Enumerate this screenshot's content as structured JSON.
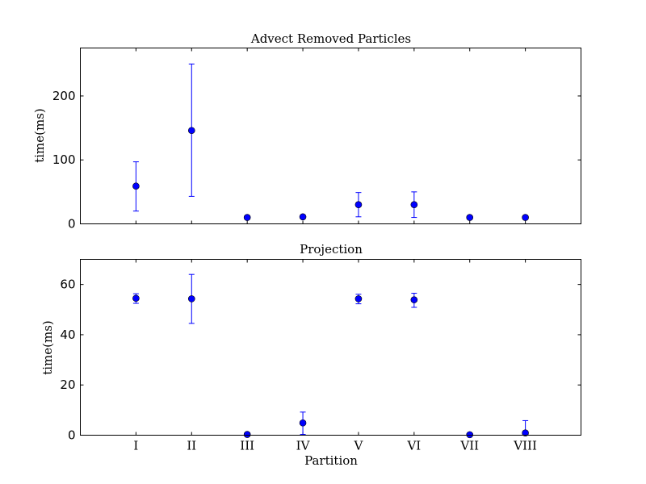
{
  "chart_data": [
    {
      "type": "scatter",
      "title": "Advect Removed Particles",
      "xlabel": "",
      "ylabel": "time(ms)",
      "categories": [
        "I",
        "II",
        "III",
        "IV",
        "V",
        "VI",
        "VII",
        "VIII"
      ],
      "ylim": [
        0,
        275
      ],
      "yticks": [
        0,
        100,
        200
      ],
      "show_xticklabels": false,
      "grid": false,
      "color": "#0000ff",
      "series": [
        {
          "values": [
            59,
            146,
            10,
            11,
            30,
            30,
            10,
            10
          ],
          "error": [
            [
              39,
              103,
              0,
              0,
              19,
              20,
              0,
              0
            ],
            [
              38,
              104,
              0,
              0,
              19,
              20,
              0,
              0
            ]
          ]
        }
      ]
    },
    {
      "type": "scatter",
      "title": "Projection",
      "xlabel": "Partition",
      "ylabel": "time(ms)",
      "categories": [
        "I",
        "II",
        "III",
        "IV",
        "V",
        "VI",
        "VII",
        "VIII"
      ],
      "ylim": [
        0,
        70
      ],
      "yticks": [
        0,
        20,
        40,
        60
      ],
      "show_xticklabels": true,
      "grid": false,
      "color": "#0000ff",
      "series": [
        {
          "values": [
            54.5,
            54.3,
            0.3,
            4.9,
            54.3,
            53.9,
            0.2,
            0.9
          ],
          "error": [
            [
              2.0,
              9.8,
              0,
              4.6,
              2.0,
              3.0,
              0,
              0.9
            ],
            [
              1.8,
              9.7,
              0,
              4.3,
              1.8,
              2.6,
              0,
              4.9
            ]
          ]
        }
      ]
    }
  ]
}
